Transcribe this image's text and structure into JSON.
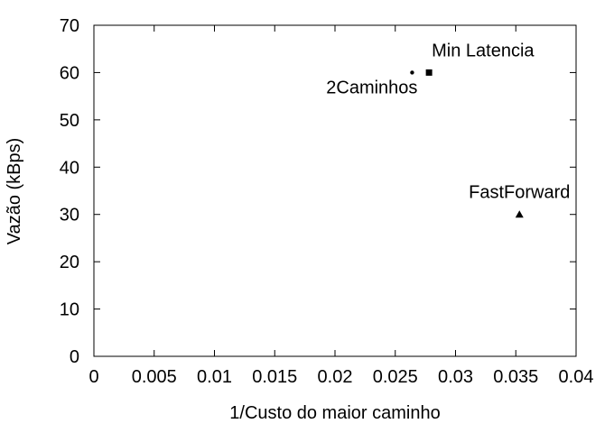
{
  "chart_data": {
    "type": "scatter",
    "xlabel": "1/Custo do maior caminho",
    "ylabel": "Vazão (kBps)",
    "xlim": [
      0,
      0.04
    ],
    "ylim": [
      0,
      70
    ],
    "x_ticks": [
      {
        "value": 0,
        "label": "0"
      },
      {
        "value": 0.005,
        "label": "0.005"
      },
      {
        "value": 0.01,
        "label": "0.01"
      },
      {
        "value": 0.015,
        "label": "0.015"
      },
      {
        "value": 0.02,
        "label": "0.02"
      },
      {
        "value": 0.025,
        "label": "0.025"
      },
      {
        "value": 0.03,
        "label": "0.03"
      },
      {
        "value": 0.035,
        "label": "0.035"
      },
      {
        "value": 0.04,
        "label": "0.04"
      }
    ],
    "y_ticks": [
      {
        "value": 0,
        "label": "0"
      },
      {
        "value": 10,
        "label": "10"
      },
      {
        "value": 20,
        "label": "20"
      },
      {
        "value": 30,
        "label": "30"
      },
      {
        "value": 40,
        "label": "40"
      },
      {
        "value": 50,
        "label": "50"
      },
      {
        "value": 60,
        "label": "60"
      },
      {
        "value": 70,
        "label": "70"
      }
    ],
    "grid": false,
    "points": [
      {
        "label": "2Caminhos",
        "x": 0.0264,
        "y": 60,
        "marker": "dot",
        "label_pos": "below-left"
      },
      {
        "label": "Min Latencia",
        "x": 0.0278,
        "y": 60,
        "marker": "square",
        "label_pos": "above-right"
      },
      {
        "label": "FastForward",
        "x": 0.0353,
        "y": 30,
        "marker": "triangle",
        "label_pos": "above"
      }
    ]
  }
}
